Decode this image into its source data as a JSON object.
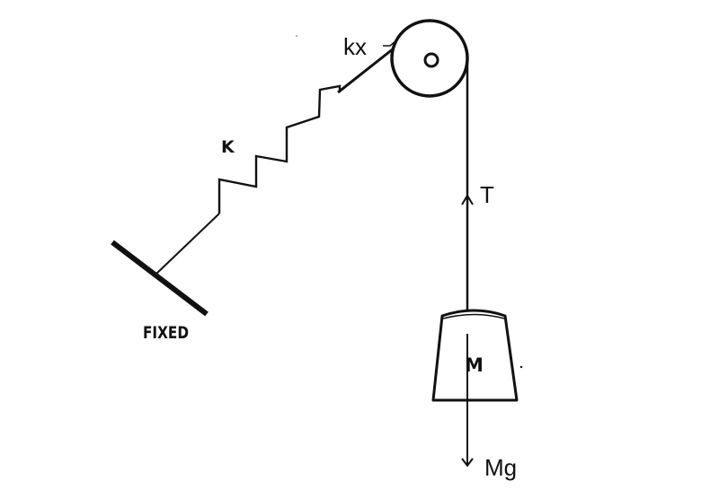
{
  "labels": {
    "spring_force": "kx",
    "spring_constant": "K",
    "support": "FIXED",
    "tension": "T",
    "mass": "M",
    "weight": "Mg"
  },
  "colors": {
    "ink": "#111111",
    "background": "#ffffff"
  }
}
